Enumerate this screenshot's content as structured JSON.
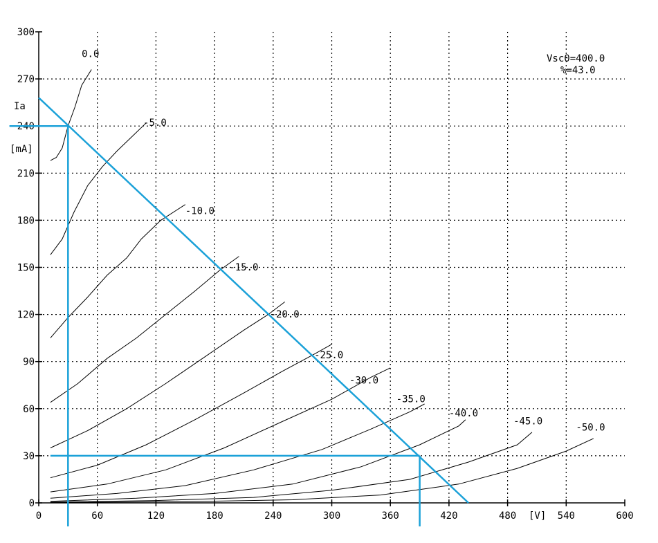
{
  "chart_data": {
    "type": "line",
    "title": "",
    "xlabel": "[V]",
    "ylabel": "Ia",
    "ylabel_unit": "[mA]",
    "xlim": [
      0,
      600
    ],
    "ylim": [
      0,
      300
    ],
    "xticks": [
      0,
      60,
      120,
      180,
      240,
      300,
      360,
      420,
      480,
      540,
      600
    ],
    "yticks": [
      0,
      30,
      60,
      90,
      120,
      150,
      180,
      210,
      240,
      270,
      300
    ],
    "grid": true,
    "params": {
      "vsc": "Vsc0=400.0",
      "mu": "%=43.0"
    },
    "series": [
      {
        "name": "0.0",
        "label_at": [
          44,
          284
        ],
        "points": [
          [
            12,
            218
          ],
          [
            18,
            220
          ],
          [
            24,
            226
          ],
          [
            30,
            240
          ],
          [
            37,
            252
          ],
          [
            44,
            266
          ],
          [
            54,
            276
          ]
        ]
      },
      {
        "name": "-5.0",
        "label_at": [
          107,
          240
        ],
        "points": [
          [
            12,
            158
          ],
          [
            24,
            168
          ],
          [
            36,
            185
          ],
          [
            50,
            202
          ],
          [
            65,
            214
          ],
          [
            80,
            224
          ],
          [
            95,
            233
          ],
          [
            110,
            242
          ]
        ]
      },
      {
        "name": "-10.0",
        "label_at": [
          150,
          184
        ],
        "points": [
          [
            12,
            105
          ],
          [
            30,
            118
          ],
          [
            50,
            131
          ],
          [
            70,
            145
          ],
          [
            90,
            156
          ],
          [
            105,
            168
          ],
          [
            125,
            180
          ],
          [
            150,
            190
          ]
        ]
      },
      {
        "name": "-15.0",
        "label_at": [
          195,
          148
        ],
        "points": [
          [
            12,
            64
          ],
          [
            40,
            76
          ],
          [
            70,
            92
          ],
          [
            100,
            105
          ],
          [
            130,
            120
          ],
          [
            160,
            135
          ],
          [
            185,
            148
          ],
          [
            205,
            157
          ]
        ]
      },
      {
        "name": "-20.0",
        "label_at": [
          237,
          118
        ],
        "points": [
          [
            12,
            35
          ],
          [
            50,
            46
          ],
          [
            90,
            60
          ],
          [
            130,
            76
          ],
          [
            170,
            93
          ],
          [
            210,
            110
          ],
          [
            235,
            120
          ],
          [
            252,
            128
          ]
        ]
      },
      {
        "name": "-25.0",
        "label_at": [
          282,
          92
        ],
        "points": [
          [
            12,
            16
          ],
          [
            60,
            24
          ],
          [
            110,
            37
          ],
          [
            160,
            53
          ],
          [
            210,
            70
          ],
          [
            250,
            84
          ],
          [
            280,
            94
          ],
          [
            300,
            101
          ]
        ]
      },
      {
        "name": "-30.0",
        "label_at": [
          318,
          76
        ],
        "points": [
          [
            12,
            7
          ],
          [
            70,
            12
          ],
          [
            130,
            21
          ],
          [
            190,
            35
          ],
          [
            250,
            52
          ],
          [
            300,
            66
          ],
          [
            340,
            80
          ],
          [
            360,
            86
          ]
        ]
      },
      {
        "name": "-35.0",
        "label_at": [
          366,
          64
        ],
        "points": [
          [
            12,
            3
          ],
          [
            80,
            6
          ],
          [
            150,
            11
          ],
          [
            220,
            21
          ],
          [
            290,
            34
          ],
          [
            340,
            47
          ],
          [
            380,
            58
          ],
          [
            395,
            63
          ]
        ]
      },
      {
        "name": "-40.0",
        "label_at": [
          420,
          55
        ],
        "points": [
          [
            12,
            1
          ],
          [
            100,
            3
          ],
          [
            180,
            6
          ],
          [
            260,
            12
          ],
          [
            330,
            23
          ],
          [
            390,
            37
          ],
          [
            430,
            49
          ],
          [
            437,
            53
          ]
        ]
      },
      {
        "name": "-45.0",
        "label_at": [
          486,
          50
        ],
        "points": [
          [
            12,
            0.5
          ],
          [
            120,
            1.5
          ],
          [
            220,
            3.5
          ],
          [
            300,
            8
          ],
          [
            380,
            15
          ],
          [
            440,
            26
          ],
          [
            490,
            37
          ],
          [
            505,
            45
          ]
        ]
      },
      {
        "name": "-50.0",
        "label_at": [
          550,
          46
        ],
        "points": [
          [
            12,
            0.2
          ],
          [
            150,
            0.8
          ],
          [
            260,
            2
          ],
          [
            350,
            5
          ],
          [
            430,
            12
          ],
          [
            490,
            22
          ],
          [
            540,
            33
          ],
          [
            568,
            41
          ]
        ]
      }
    ],
    "overlays": [
      {
        "name": "load-line",
        "points": [
          [
            0,
            258
          ],
          [
            440,
            0
          ]
        ]
      },
      {
        "name": "vertical-left",
        "points": [
          [
            30,
            240
          ],
          [
            30,
            -15
          ]
        ]
      },
      {
        "name": "horizontal-top",
        "points": [
          [
            -30,
            240
          ],
          [
            30,
            240
          ]
        ]
      },
      {
        "name": "horizontal-bottom",
        "points": [
          [
            12,
            30
          ],
          [
            390,
            30
          ]
        ]
      },
      {
        "name": "vertical-right",
        "points": [
          [
            390,
            30
          ],
          [
            390,
            -15
          ]
        ]
      }
    ],
    "overlay_color": "#1ba1d8"
  }
}
